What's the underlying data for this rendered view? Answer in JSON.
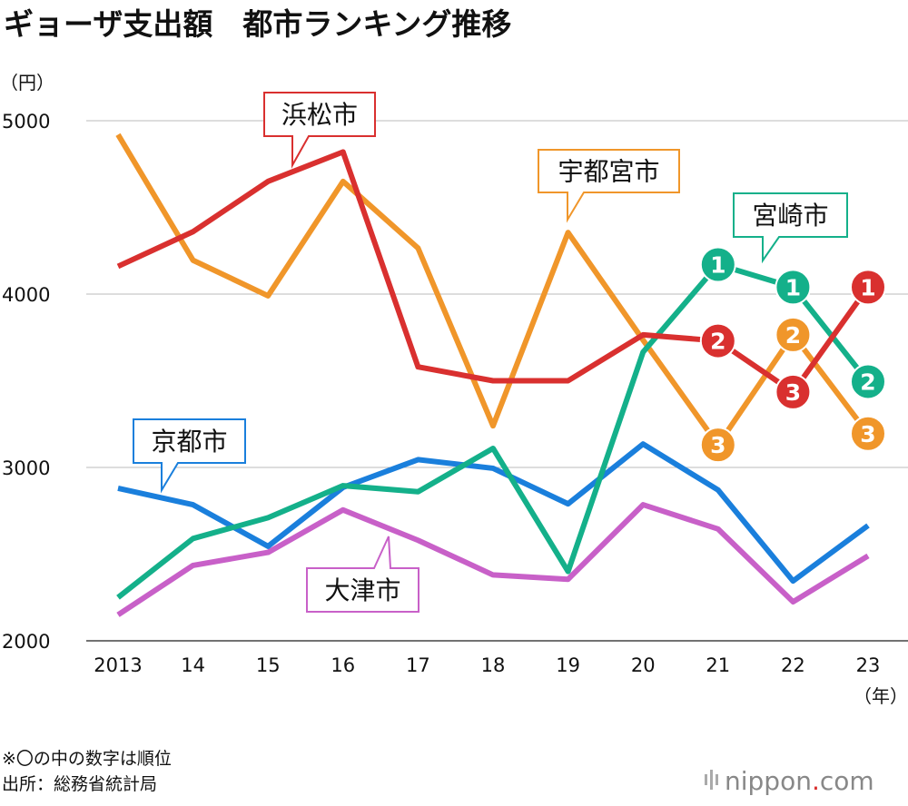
{
  "chart_data": {
    "type": "line",
    "title": "ギョーザ支出額　都市ランキング推移",
    "ylabel": "（円）",
    "xlabel": "（年）",
    "ylim": [
      2000,
      5000
    ],
    "yticks": [
      2000,
      3000,
      4000,
      5000
    ],
    "grid": true,
    "x": [
      2013,
      2014,
      2015,
      2016,
      2017,
      2018,
      2019,
      2020,
      2021,
      2022,
      2023
    ],
    "xtick_labels": [
      "2013",
      "14",
      "15",
      "16",
      "17",
      "18",
      "19",
      "20",
      "21",
      "22",
      "23"
    ],
    "series": [
      {
        "name": "宇都宮市",
        "color": "#f0962a",
        "values": [
          4920,
          4195,
          3990,
          4650,
          4265,
          3240,
          4355,
          3735,
          3130,
          3765,
          3195
        ],
        "ranks": {
          "2021": "3",
          "2022": "2",
          "2023": "3"
        }
      },
      {
        "name": "浜松市",
        "color": "#d9302f",
        "values": [
          4160,
          4360,
          4650,
          4820,
          3580,
          3500,
          3500,
          3765,
          3730,
          3435,
          4040
        ],
        "ranks": {
          "2021": "2",
          "2022": "3",
          "2023": "1"
        }
      },
      {
        "name": "宮崎市",
        "color": "#14b08a",
        "values": [
          2250,
          2590,
          2710,
          2895,
          2860,
          3110,
          2400,
          3665,
          4170,
          4040,
          3495
        ],
        "ranks": {
          "2021": "1",
          "2022": "1",
          "2023": "2"
        }
      },
      {
        "name": "京都市",
        "color": "#1a7fdc",
        "values": [
          2880,
          2785,
          2545,
          2885,
          3045,
          2995,
          2790,
          3135,
          2870,
          2345,
          2665
        ]
      },
      {
        "name": "大津市",
        "color": "#c860c8",
        "values": [
          2150,
          2435,
          2510,
          2755,
          2580,
          2380,
          2355,
          2785,
          2645,
          2225,
          2490
        ]
      }
    ],
    "notes": [
      "※〇の中の数字は順位",
      "出所：総務省統計局"
    ],
    "brand": "nippon.com"
  }
}
